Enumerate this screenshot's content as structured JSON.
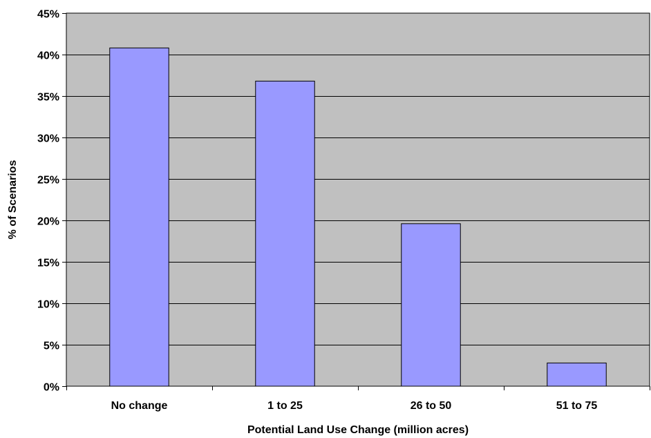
{
  "chart_data": {
    "type": "bar",
    "title": "",
    "xlabel": "Potential Land Use Change (million acres)",
    "ylabel": "% of Scenarios",
    "categories": [
      "No change",
      "1 to 25",
      "26 to 50",
      "51 to 75"
    ],
    "values": [
      40.8,
      36.8,
      19.6,
      2.8
    ],
    "ylim": [
      0,
      45
    ],
    "yticks": [
      0,
      5,
      10,
      15,
      20,
      25,
      30,
      35,
      40,
      45
    ],
    "ytick_labels": [
      "0%",
      "5%",
      "10%",
      "15%",
      "20%",
      "25%",
      "30%",
      "35%",
      "40%",
      "45%"
    ],
    "grid": true,
    "legend": "none",
    "colors": {
      "bar_fill": "#9999ff",
      "plot_background": "#c0c0c0",
      "gridline": "#000000"
    }
  }
}
